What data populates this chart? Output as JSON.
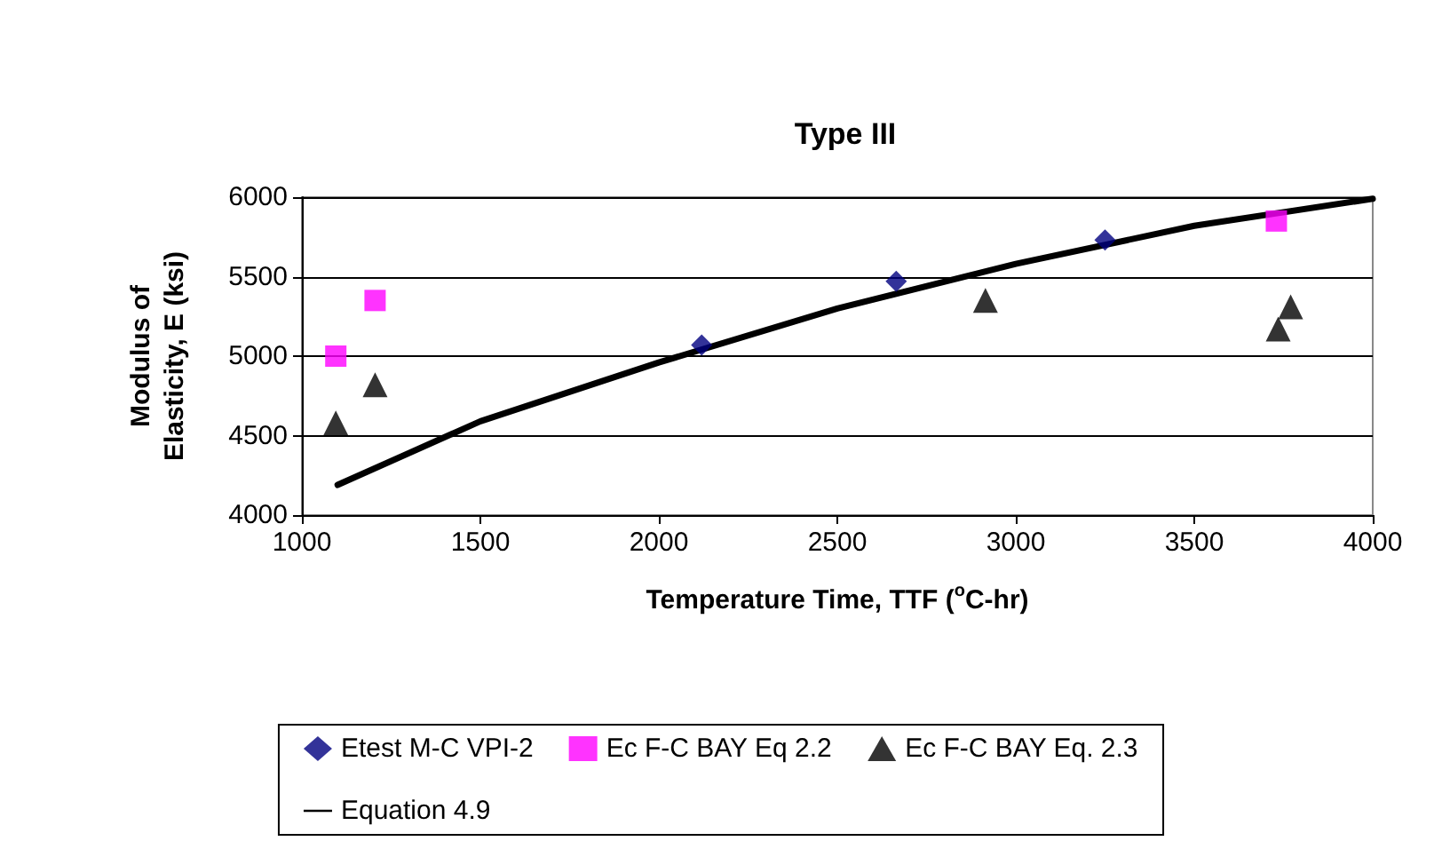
{
  "chart_data": {
    "type": "scatter",
    "title": "Type III",
    "xlabel": "Temperature Time, TTF ($^{o}$C-hr)",
    "ylabel": "Modulus of Elasticity, E (ksi)",
    "xlim": [
      1000,
      4000
    ],
    "xticks": [
      1000,
      1500,
      2000,
      2500,
      3000,
      3500,
      4000
    ],
    "ylim": [
      4000,
      6000
    ],
    "yticks": [
      4000,
      4500,
      5000,
      5500,
      6000
    ],
    "grid": "y",
    "legend": "bottom",
    "series": [
      {
        "name": "Etest M-C VPI-2",
        "marker": "diamond",
        "color": "#000080",
        "x": [
          2120,
          2665,
          3250
        ],
        "values": [
          5070,
          5470,
          5730
        ]
      },
      {
        "name": "Ec F-C BAY Eq 2.2",
        "marker": "square",
        "color": "#ff00ff",
        "x": [
          1095,
          1205,
          3730
        ],
        "values": [
          5000,
          5350,
          5850
        ]
      },
      {
        "name": "Ec F-C BAY Eq. 2.3",
        "marker": "triangle",
        "color": "#000000",
        "x": [
          1095,
          1205,
          2915,
          3735,
          3770
        ],
        "values": [
          4580,
          4820,
          5350,
          5170,
          5310
        ]
      },
      {
        "name": "Equation 4.9",
        "type": "line",
        "marker": "none",
        "line_style": "solid",
        "color": "#000000",
        "x": [
          1100,
          1500,
          2000,
          2500,
          3000,
          3500,
          4000
        ],
        "values": [
          4190,
          4590,
          4960,
          5300,
          5580,
          5820,
          5990
        ]
      }
    ]
  }
}
